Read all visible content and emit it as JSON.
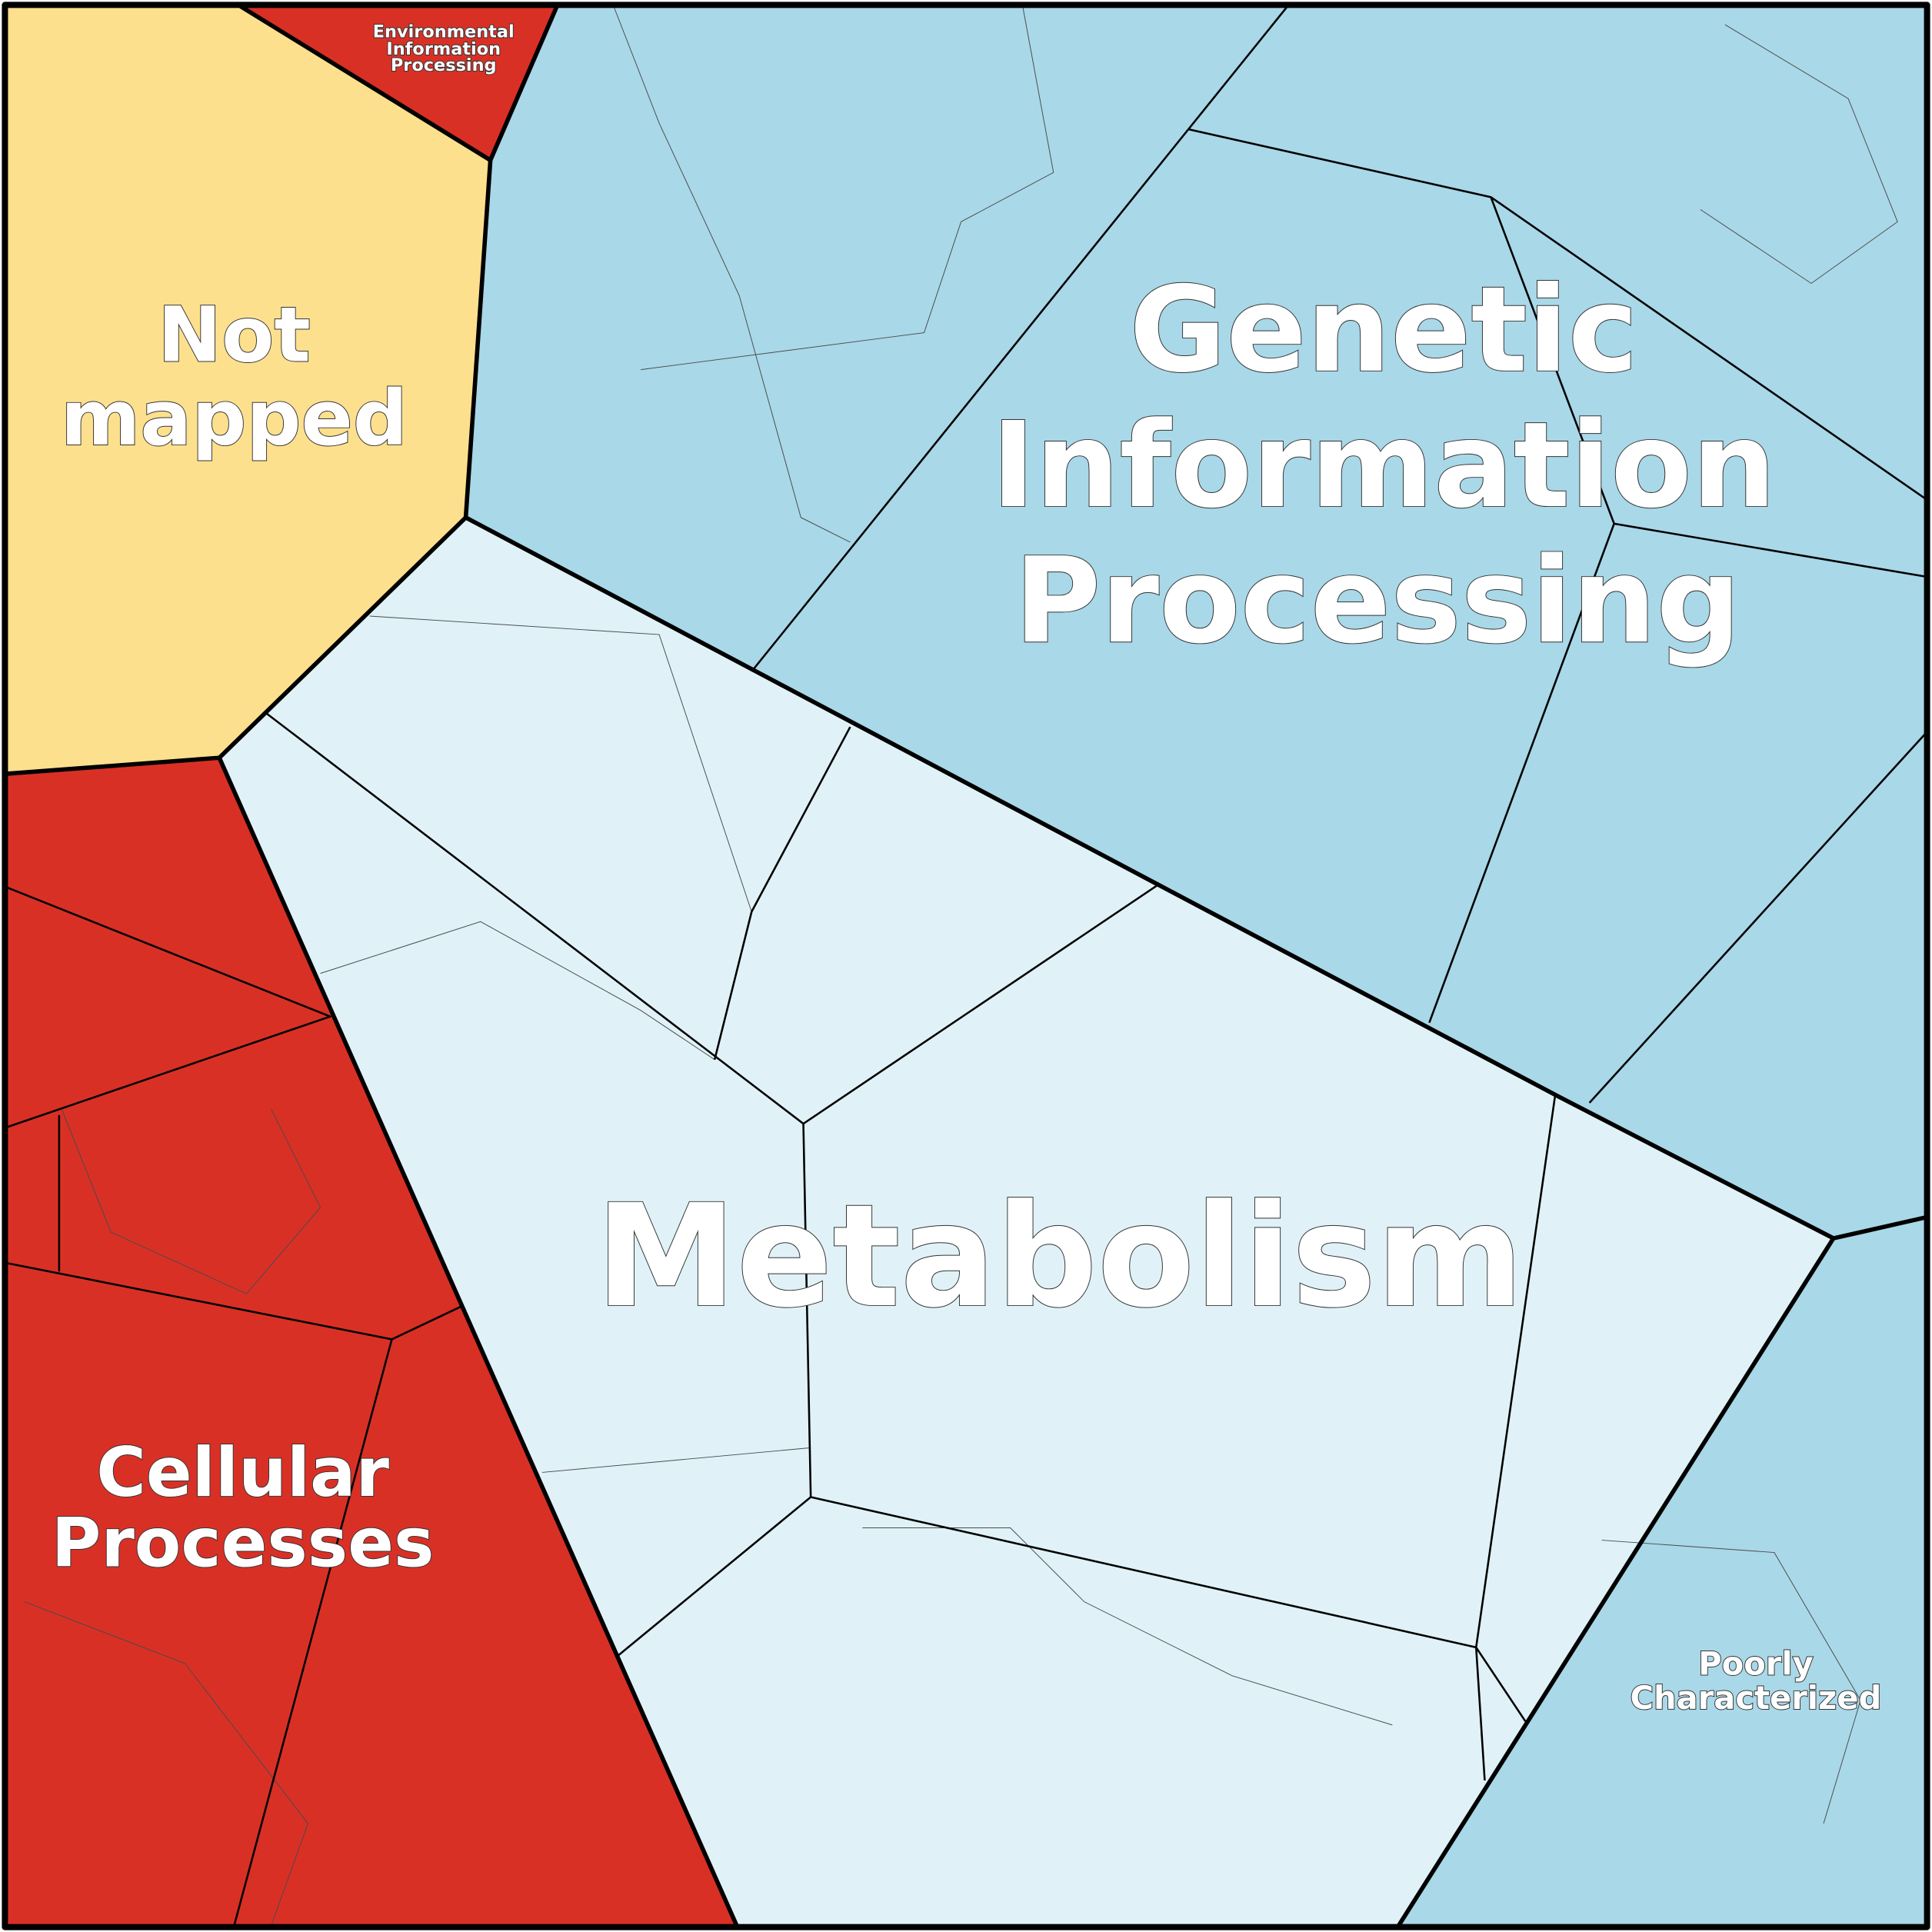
{
  "regions": [
    {
      "label_lines": [
        "Not",
        "mapped"
      ]
    },
    {
      "label_lines": [
        "Environmental",
        "Information",
        "Processing"
      ]
    },
    {
      "label_lines": [
        "Genetic",
        "Information",
        "Processing"
      ]
    },
    {
      "label_lines": [
        "Metabolism"
      ]
    },
    {
      "label_lines": [
        "Cellular",
        "Processes"
      ]
    },
    {
      "label_lines": [
        "Poorly",
        "Characterized"
      ]
    }
  ]
}
